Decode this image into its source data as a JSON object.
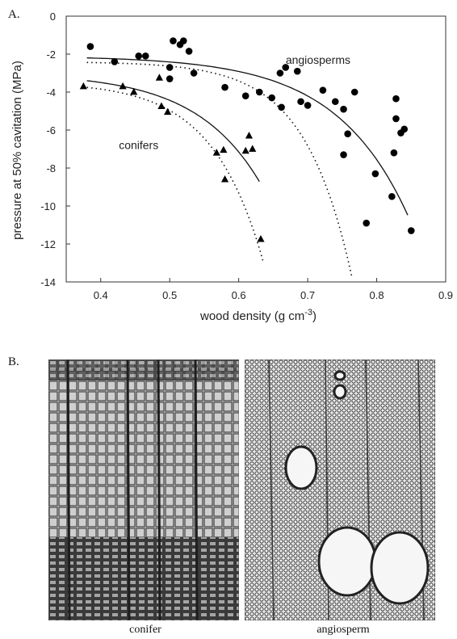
{
  "panel_a_label": "A.",
  "panel_b_label": "B.",
  "micrograph_captions": {
    "left": "conifer",
    "right": "angiosperm"
  },
  "chart_data": {
    "type": "scatter",
    "xlabel": "wood density (g cm",
    "xlabel_superscript": "-3",
    "xlabel_close": ")",
    "ylabel": "pressure at 50% cavitation (MPa)",
    "xlim": [
      0.35,
      0.9
    ],
    "ylim": [
      -14,
      0
    ],
    "xticks": [
      0.4,
      0.5,
      0.6,
      0.7,
      0.8,
      0.9
    ],
    "yticks": [
      0,
      -2,
      -4,
      -6,
      -8,
      -10,
      -12,
      -14
    ],
    "grid": false,
    "annotations": [
      "angiosperms",
      "conifers"
    ],
    "series": [
      {
        "name": "angiosperms",
        "marker": "circle",
        "color": "#000000",
        "points": [
          [
            0.385,
            -1.6
          ],
          [
            0.42,
            -2.4
          ],
          [
            0.455,
            -2.1
          ],
          [
            0.465,
            -2.1
          ],
          [
            0.5,
            -2.7
          ],
          [
            0.5,
            -3.3
          ],
          [
            0.505,
            -1.3
          ],
          [
            0.515,
            -1.5
          ],
          [
            0.52,
            -1.3
          ],
          [
            0.528,
            -1.85
          ],
          [
            0.535,
            -3.0
          ],
          [
            0.58,
            -3.75
          ],
          [
            0.61,
            -4.2
          ],
          [
            0.63,
            -4.0
          ],
          [
            0.648,
            -4.3
          ],
          [
            0.66,
            -3.0
          ],
          [
            0.662,
            -4.8
          ],
          [
            0.668,
            -2.7
          ],
          [
            0.685,
            -2.9
          ],
          [
            0.69,
            -4.5
          ],
          [
            0.7,
            -4.7
          ],
          [
            0.722,
            -3.9
          ],
          [
            0.74,
            -4.5
          ],
          [
            0.752,
            -4.9
          ],
          [
            0.752,
            -7.3
          ],
          [
            0.758,
            -6.2
          ],
          [
            0.768,
            -4.0
          ],
          [
            0.785,
            -10.9
          ],
          [
            0.798,
            -8.3
          ],
          [
            0.822,
            -9.5
          ],
          [
            0.825,
            -7.2
          ],
          [
            0.828,
            -4.35
          ],
          [
            0.828,
            -5.4
          ],
          [
            0.835,
            -6.15
          ],
          [
            0.84,
            -5.95
          ],
          [
            0.85,
            -11.3
          ]
        ]
      },
      {
        "name": "conifers",
        "marker": "triangle",
        "color": "#000000",
        "points": [
          [
            0.375,
            -3.7
          ],
          [
            0.432,
            -3.7
          ],
          [
            0.448,
            -4.0
          ],
          [
            0.485,
            -3.25
          ],
          [
            0.488,
            -4.75
          ],
          [
            0.497,
            -5.05
          ],
          [
            0.568,
            -7.2
          ],
          [
            0.578,
            -7.05
          ],
          [
            0.58,
            -8.6
          ],
          [
            0.61,
            -7.1
          ],
          [
            0.615,
            -6.3
          ],
          [
            0.62,
            -7.0
          ],
          [
            0.632,
            -11.75
          ]
        ]
      }
    ]
  }
}
